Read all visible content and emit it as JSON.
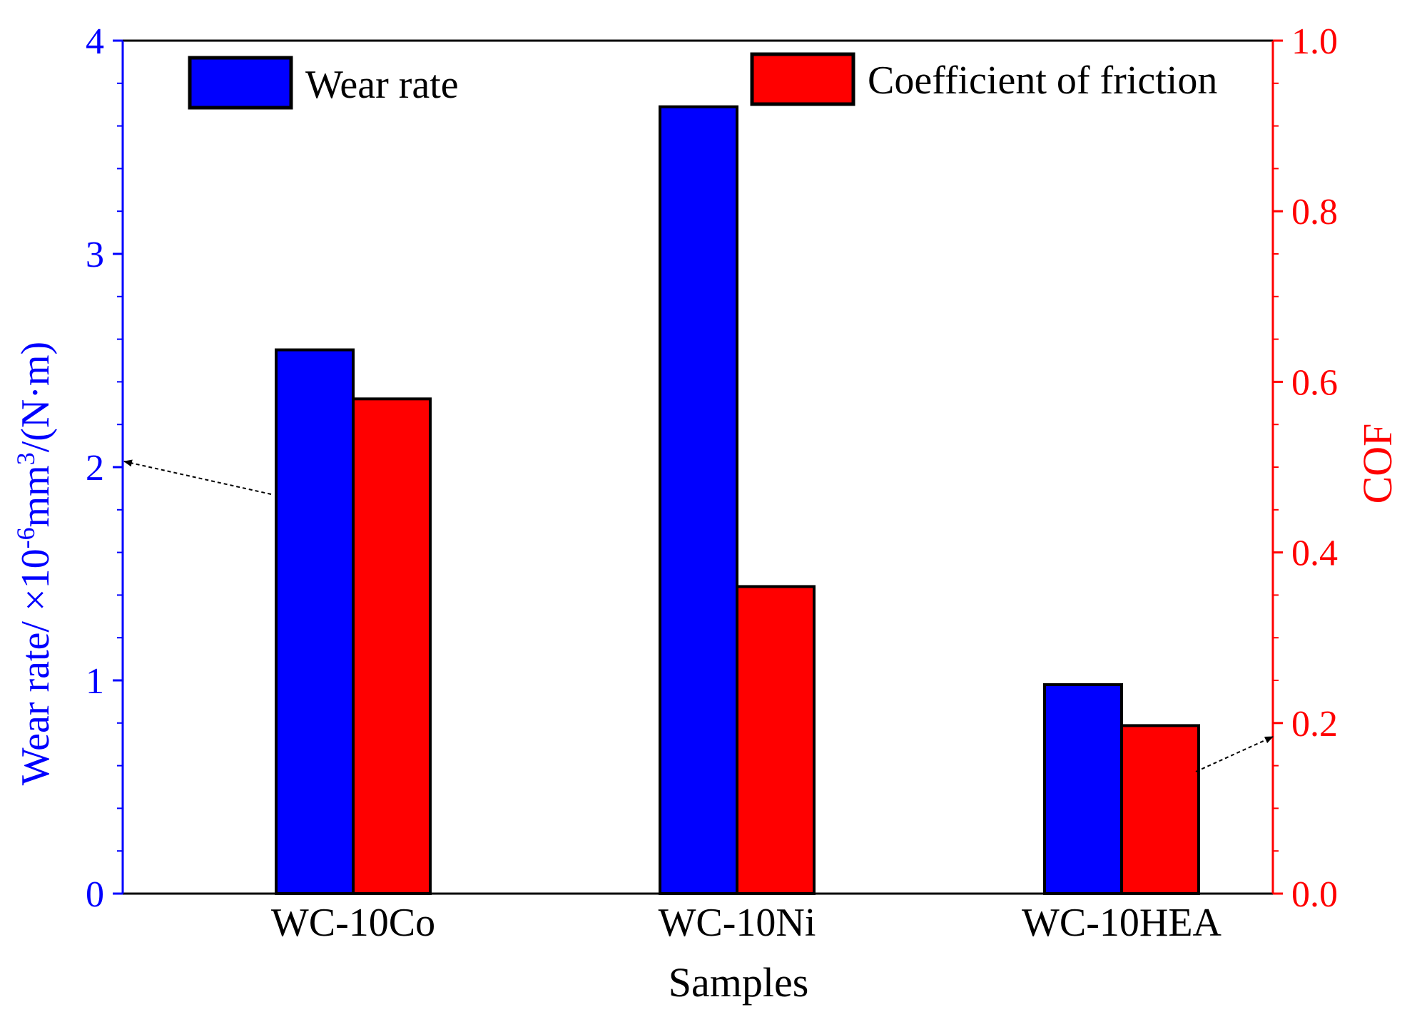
{
  "chart_data": {
    "type": "bar",
    "categories": [
      "WC-10Co",
      "WC-10Ni",
      "WC-10HEA"
    ],
    "series": [
      {
        "name": "Wear rate",
        "axis": "left",
        "color": "#0000ff",
        "values": [
          2.55,
          3.69,
          0.98
        ]
      },
      {
        "name": "Coefficient of friction",
        "axis": "right",
        "color": "#ff0000",
        "values": [
          0.58,
          0.36,
          0.197
        ]
      }
    ],
    "xlabel": "Samples",
    "ylabel_left": {
      "prefix": "Wear rate/ ×10",
      "exp1": "-6",
      "mid": "mm",
      "exp2": "3",
      "suffix": "/(N·m)"
    },
    "ylabel_right": "COF",
    "ylim_left": [
      0,
      4
    ],
    "ylim_right": [
      0,
      1.0
    ],
    "yticks_left": [
      "0",
      "1",
      "2",
      "3",
      "4"
    ],
    "yticks_right": [
      "0.0",
      "0.2",
      "0.4",
      "0.6",
      "0.8",
      "1.0"
    ],
    "legend": [
      "Wear rate",
      "Coefficient of friction"
    ],
    "colors": {
      "left_axis": "#0000ff",
      "right_axis": "#ff0000",
      "frame": "#000000"
    }
  }
}
